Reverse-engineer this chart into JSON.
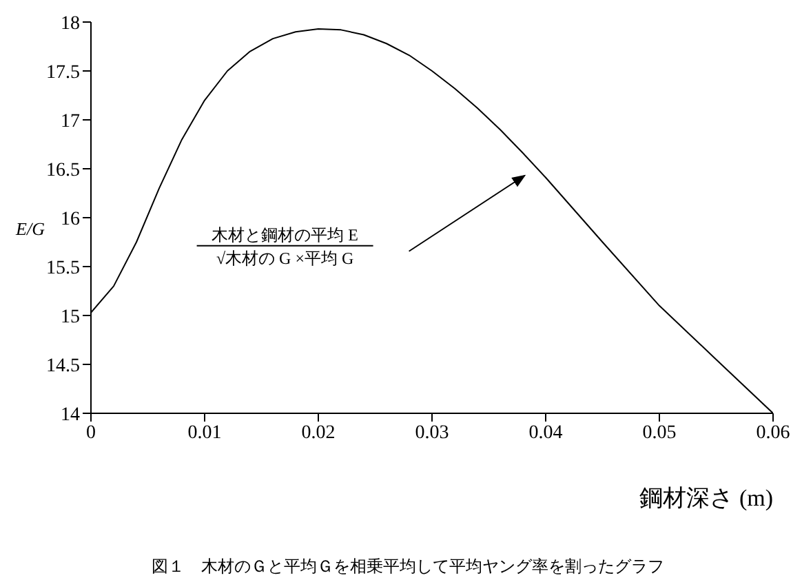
{
  "chart_data": {
    "type": "line",
    "title": "図１　木材のＧと平均Ｇを相乗平均して平均ヤング率を割ったグラフ",
    "xlabel": "鋼材深さ (m)",
    "ylabel": "E/G",
    "x": [
      0,
      0.002,
      0.004,
      0.006,
      0.008,
      0.01,
      0.012,
      0.014,
      0.016,
      0.018,
      0.02,
      0.022,
      0.024,
      0.026,
      0.028,
      0.03,
      0.032,
      0.034,
      0.036,
      0.038,
      0.04,
      0.045,
      0.05,
      0.055,
      0.06
    ],
    "series": [
      {
        "color": "#000000",
        "values": [
          15.03,
          15.3,
          15.75,
          16.3,
          16.8,
          17.2,
          17.5,
          17.7,
          17.83,
          17.9,
          17.93,
          17.92,
          17.87,
          17.78,
          17.66,
          17.5,
          17.32,
          17.12,
          16.9,
          16.66,
          16.41,
          15.75,
          15.1,
          14.55,
          14.0
        ]
      }
    ],
    "xlim": [
      0,
      0.06
    ],
    "xticks": [
      0,
      0.01,
      0.02,
      0.03,
      0.04,
      0.05,
      0.06
    ],
    "ylim": [
      14,
      18
    ],
    "yticks": [
      14,
      14.5,
      15,
      15.5,
      16,
      16.5,
      17,
      17.5,
      18
    ],
    "annotations": [
      "木材と鋼材の平均 E\n√木材の G ×平均 G"
    ],
    "grid": false,
    "legend": false,
    "marker": "none",
    "line_style": "solid"
  }
}
